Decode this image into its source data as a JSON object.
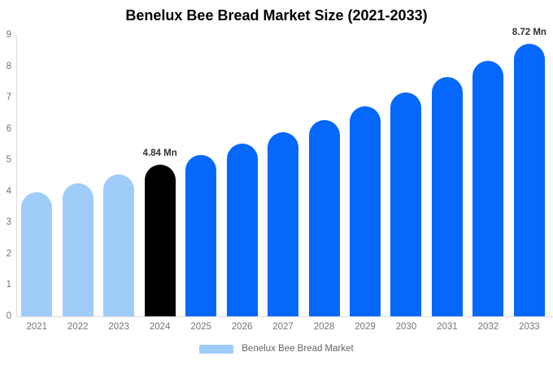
{
  "chart_data": {
    "type": "bar",
    "title": "Benelux Bee Bread Market Size (2021-2033)",
    "categories": [
      "2021",
      "2022",
      "2023",
      "2024",
      "2025",
      "2026",
      "2027",
      "2028",
      "2029",
      "2030",
      "2031",
      "2032",
      "2033"
    ],
    "values": [
      3.98,
      4.25,
      4.53,
      4.84,
      5.17,
      5.52,
      5.89,
      6.29,
      6.72,
      7.17,
      7.65,
      8.17,
      8.72
    ],
    "unit": "Mn",
    "bar_colors": [
      "#a0ccfa",
      "#a0ccfa",
      "#a0ccfa",
      "#000000",
      "#0568fa",
      "#0568fa",
      "#0568fa",
      "#0568fa",
      "#0568fa",
      "#0568fa",
      "#0568fa",
      "#0568fa",
      "#0568fa"
    ],
    "annotations": [
      {
        "category": "2024",
        "text": "4.84 Mn"
      },
      {
        "category": "2033",
        "text": "8.72 Mn"
      }
    ],
    "xlabel": "",
    "ylabel": "",
    "ylim": [
      0,
      9
    ],
    "yticks": [
      0,
      1,
      2,
      3,
      4,
      5,
      6,
      7,
      8,
      9
    ],
    "grid": false,
    "legend": {
      "position": "bottom",
      "items": [
        {
          "label": "Benelux Bee Bread Market",
          "color": "#a0ccfa"
        }
      ]
    }
  },
  "colors": {
    "background": "#ffffff",
    "axis_line": "#dcdcdc",
    "tick_text": "#757575",
    "data_label_text": "#333333",
    "legend_text": "#666666",
    "title_text": "#000000"
  }
}
